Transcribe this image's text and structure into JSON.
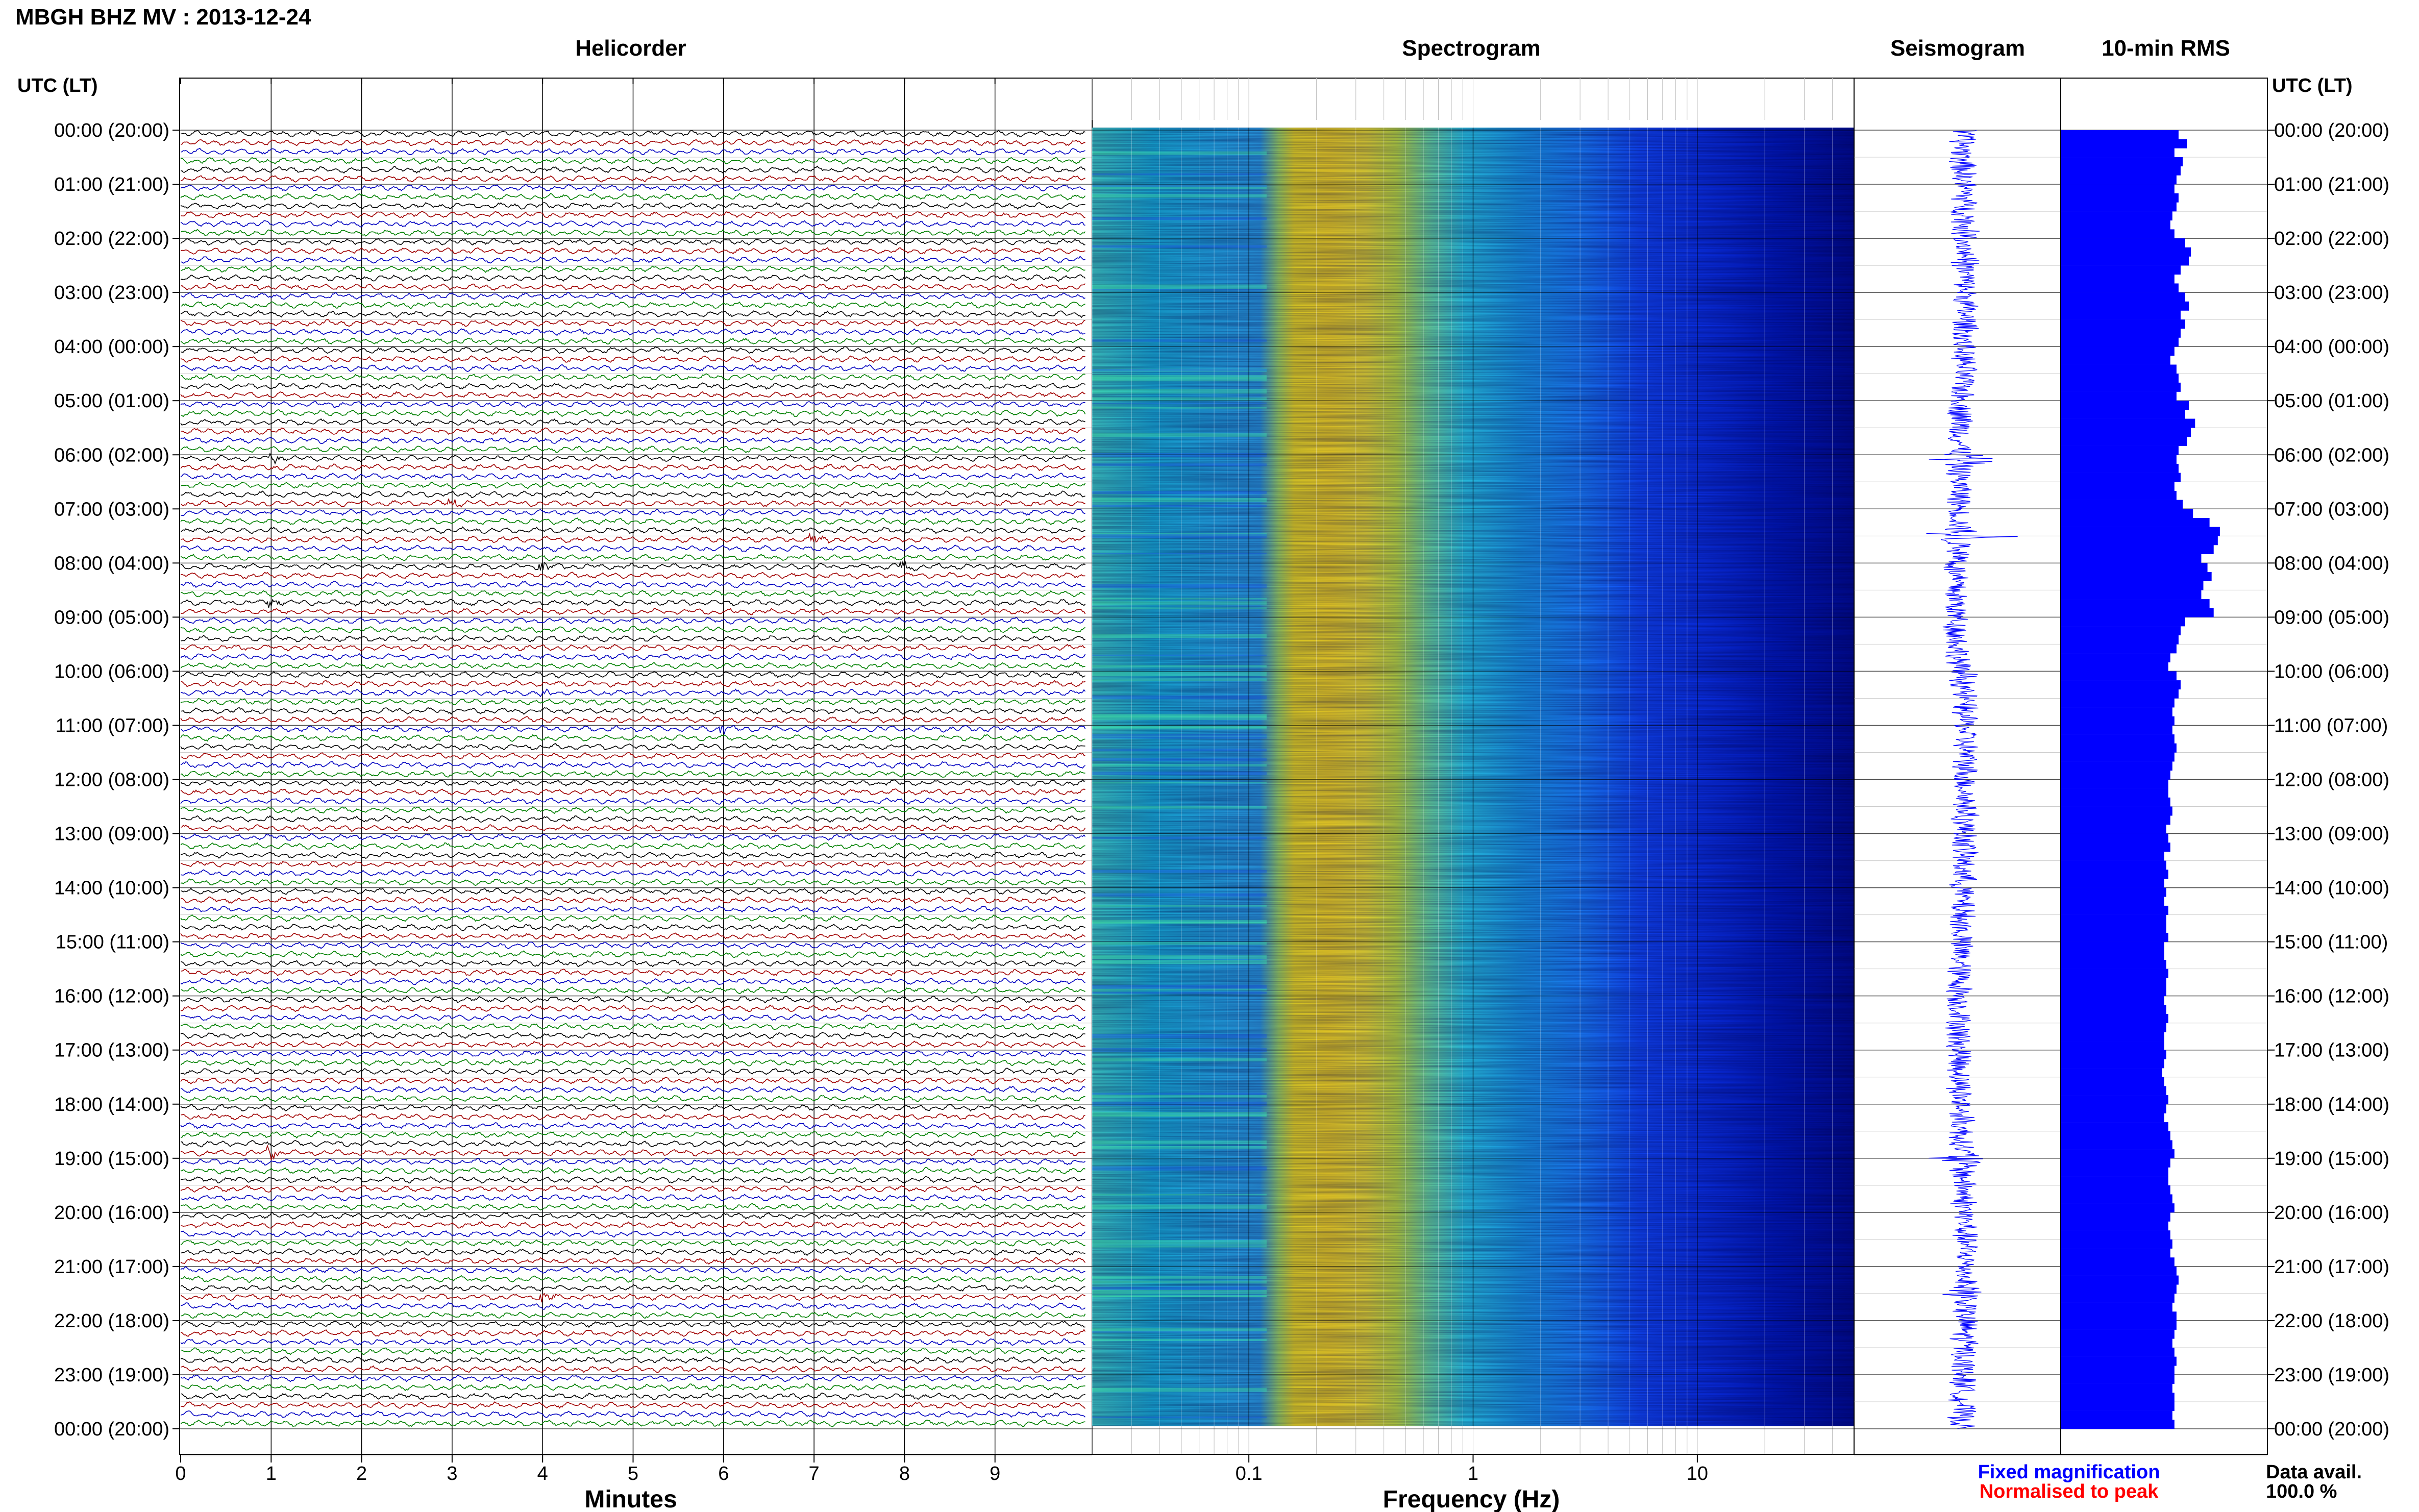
{
  "header": {
    "title": "MBGH BHZ MV : 2013-12-24"
  },
  "panels": {
    "helicorder": "Helicorder",
    "spectrogram": "Spectrogram",
    "seismogram": "Seismogram",
    "rms": "10-min RMS"
  },
  "time_axis": {
    "left_label": "UTC (LT)",
    "right_label": "UTC (LT)",
    "labels": [
      "00:00 (20:00)",
      "01:00 (21:00)",
      "02:00 (22:00)",
      "03:00 (23:00)",
      "04:00 (00:00)",
      "05:00 (01:00)",
      "06:00 (02:00)",
      "07:00 (03:00)",
      "08:00 (04:00)",
      "09:00 (05:00)",
      "10:00 (06:00)",
      "11:00 (07:00)",
      "12:00 (08:00)",
      "13:00 (09:00)",
      "14:00 (10:00)",
      "15:00 (11:00)",
      "16:00 (12:00)",
      "17:00 (13:00)",
      "18:00 (14:00)",
      "19:00 (15:00)",
      "20:00 (16:00)",
      "21:00 (17:00)",
      "22:00 (18:00)",
      "23:00 (19:00)",
      "00:00 (20:00)"
    ]
  },
  "x_axes": {
    "minutes_label": "Minutes",
    "minutes_ticks": [
      "0",
      "1",
      "2",
      "3",
      "4",
      "5",
      "6",
      "7",
      "8",
      "9"
    ],
    "freq_label": "Frequency (Hz)",
    "freq_ticks": [
      "0.1",
      "1",
      "10"
    ]
  },
  "legend": {
    "fixed": "Fixed magnification",
    "normalised": "Normalised to peak",
    "fixed_color": "#0000ff",
    "normalised_color": "#ff0000"
  },
  "data_availability": {
    "label": "Data avail.",
    "value": "100.0 %"
  },
  "colors": {
    "trace_cycle": [
      "#000000",
      "#a00000",
      "#0000c0",
      "#008000"
    ],
    "seismogram": "#0000ff",
    "rms_bar": "#0000ff"
  },
  "chart_data": [
    {
      "type": "line",
      "title": "Helicorder",
      "xlabel": "Minutes",
      "x_range": [
        0,
        10
      ],
      "rows": 144,
      "row_minutes": 10,
      "events": [
        {
          "time": "06:01",
          "color": "#a00000"
        },
        {
          "time": "06:53",
          "color": "#000000"
        },
        {
          "time": "07:37",
          "color": "#000000"
        },
        {
          "time": "08:04",
          "color": "#a00000"
        },
        {
          "time": "08:08",
          "color": "#0000c0"
        },
        {
          "time": "08:41",
          "color": "#000000"
        },
        {
          "time": "10:24",
          "color": "#000000"
        },
        {
          "time": "11:06",
          "color": "#0000c0"
        },
        {
          "time": "18:51",
          "color": "#a00000"
        },
        {
          "time": "21:34",
          "color": "#a00000"
        }
      ]
    },
    {
      "type": "heatmap",
      "title": "Spectrogram",
      "xlabel": "Frequency (Hz)",
      "x_scale": "log",
      "x_range": [
        0.02,
        50
      ],
      "peak_band_hz": [
        0.2,
        0.5
      ],
      "colormap": [
        "#00008b",
        "#0000ff",
        "#1e90ff",
        "#00ffff",
        "#adff2f",
        "#ffff00",
        "#ffa500"
      ]
    },
    {
      "type": "line",
      "title": "Seismogram",
      "events": [
        {
          "time": "06:05",
          "amplitude": 3.0
        },
        {
          "time": "07:30",
          "amplitude": 3.5
        },
        {
          "time": "19:00",
          "amplitude": 1.7
        },
        {
          "time": "21:30",
          "amplitude": 1.3
        }
      ]
    },
    {
      "type": "bar",
      "title": "10-min RMS",
      "orientation": "horizontal",
      "x_range": [
        0,
        1
      ],
      "values": [
        0.57,
        0.61,
        0.55,
        0.59,
        0.58,
        0.56,
        0.55,
        0.57,
        0.56,
        0.54,
        0.53,
        0.55,
        0.6,
        0.63,
        0.62,
        0.58,
        0.55,
        0.57,
        0.6,
        0.62,
        0.58,
        0.6,
        0.58,
        0.57,
        0.55,
        0.53,
        0.56,
        0.57,
        0.58,
        0.56,
        0.62,
        0.6,
        0.65,
        0.63,
        0.61,
        0.57,
        0.56,
        0.57,
        0.58,
        0.55,
        0.56,
        0.59,
        0.64,
        0.72,
        0.77,
        0.76,
        0.74,
        0.68,
        0.71,
        0.73,
        0.69,
        0.68,
        0.72,
        0.74,
        0.6,
        0.58,
        0.57,
        0.56,
        0.53,
        0.52,
        0.56,
        0.58,
        0.57,
        0.55,
        0.54,
        0.55,
        0.54,
        0.55,
        0.56,
        0.55,
        0.54,
        0.53,
        0.52,
        0.52,
        0.53,
        0.54,
        0.53,
        0.51,
        0.52,
        0.53,
        0.5,
        0.51,
        0.52,
        0.5,
        0.51,
        0.5,
        0.52,
        0.51,
        0.51,
        0.52,
        0.5,
        0.5,
        0.51,
        0.52,
        0.51,
        0.51,
        0.5,
        0.51,
        0.52,
        0.51,
        0.5,
        0.5,
        0.51,
        0.5,
        0.49,
        0.5,
        0.51,
        0.52,
        0.51,
        0.5,
        0.52,
        0.53,
        0.54,
        0.55,
        0.53,
        0.52,
        0.52,
        0.53,
        0.54,
        0.55,
        0.53,
        0.52,
        0.53,
        0.54,
        0.53,
        0.55,
        0.56,
        0.57,
        0.56,
        0.55,
        0.54,
        0.56,
        0.56,
        0.55,
        0.54,
        0.55,
        0.56,
        0.55,
        0.55,
        0.54,
        0.55,
        0.55,
        0.54,
        0.55
      ]
    }
  ]
}
